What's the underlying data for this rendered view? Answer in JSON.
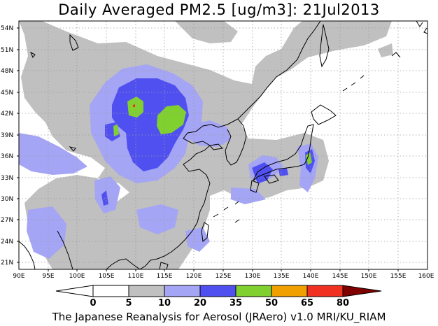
{
  "title": "Daily Averaged PM2.5 [ug/m3]: 21Jul2013",
  "footer": "The Japanese Reanalysis for Aerosol (JRAero) v1.0 MRI/KU_RIAM",
  "map": {
    "lon_range": [
      90,
      160
    ],
    "lat_range": [
      20,
      55
    ],
    "lat_ticks": [
      "21N",
      "24N",
      "27N",
      "30N",
      "33N",
      "36N",
      "39N",
      "42N",
      "45N",
      "48N",
      "51N",
      "54N"
    ],
    "lon_ticks": [
      "90E",
      "95E",
      "100E",
      "105E",
      "110E",
      "115E",
      "120E",
      "125E",
      "130E",
      "135E",
      "140E",
      "145E",
      "150E",
      "155E",
      "160E"
    ],
    "grid": true
  },
  "colorbar": {
    "labels": [
      "0",
      "5",
      "10",
      "20",
      "35",
      "50",
      "65",
      "80"
    ],
    "colors": [
      "#ffffff",
      "#c0c0c0",
      "#a5a5f5",
      "#5050f0",
      "#80d030",
      "#f0a000",
      "#f03020",
      "#800000"
    ]
  }
}
